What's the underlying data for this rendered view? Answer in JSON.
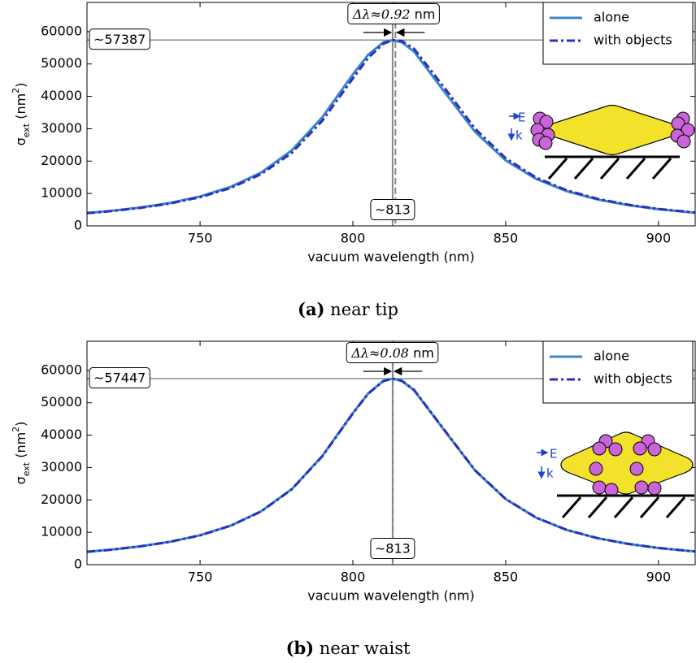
{
  "chart_data": [
    {
      "type": "line",
      "x": [
        713,
        720,
        730,
        740,
        750,
        760,
        770,
        780,
        790,
        800,
        805,
        810,
        813,
        816,
        820,
        830,
        840,
        850,
        860,
        870,
        880,
        890,
        900,
        912
      ],
      "series": [
        {
          "name": "alone",
          "color": "#3a86c8",
          "style": "solid",
          "values": [
            3980,
            4554,
            5604,
            7041,
            9073,
            12033,
            16486,
            23319,
            33560,
            46778,
            52848,
            56701,
            57387,
            56701,
            53849,
            41351,
            29011,
            20228,
            14477,
            10708,
            8171,
            6420,
            5144,
            4056
          ]
        },
        {
          "name": "with objects",
          "color": "#2a2fbe",
          "style": "dashdot",
          "values": [
            3912,
            4471,
            5492,
            6886,
            8849,
            11703,
            15984,
            22547,
            32446,
            45554,
            51887,
            56286,
            57372,
            57115,
            54722,
            42602,
            29989,
            20879,
            14901,
            10989,
            8363,
            6556,
            5243,
            4126
          ]
        }
      ],
      "xlim": [
        713,
        912
      ],
      "ylim": [
        0,
        69000
      ],
      "xticks": [
        750,
        800,
        850,
        900
      ],
      "yticks": [
        0,
        10000,
        20000,
        30000,
        40000,
        50000,
        60000
      ],
      "x_label": "vacuum wavelength (nm)",
      "y_label": [
        "σ",
        "ext",
        " (nm",
        "2",
        ")"
      ],
      "peak": {
        "value": 57387,
        "label": "~57387"
      },
      "peak_x": {
        "value": 813,
        "label": "~813"
      },
      "shifted_x": 813.92,
      "shift_label": [
        "Δλ≈0.92",
        " nm"
      ],
      "inset_labels": [
        "E",
        "k"
      ],
      "legend": "upper right",
      "caption": [
        "(a)",
        " near tip"
      ]
    },
    {
      "type": "line",
      "x": [
        713,
        720,
        730,
        740,
        750,
        760,
        770,
        780,
        790,
        800,
        805,
        810,
        813,
        816,
        820,
        830,
        840,
        850,
        860,
        870,
        880,
        890,
        900,
        912
      ],
      "series": [
        {
          "name": "alone",
          "color": "#3a86c8",
          "style": "solid",
          "values": [
            3984,
            4559,
            5610,
            7048,
            9082,
            12046,
            16503,
            23343,
            33595,
            46827,
            52903,
            56761,
            57447,
            56761,
            53905,
            41394,
            29041,
            20249,
            14492,
            10719,
            8180,
            6427,
            5149,
            4060
          ]
        },
        {
          "name": "with objects",
          "color": "#2a2fbe",
          "style": "dashdot",
          "values": [
            3978,
            4551,
            5599,
            7033,
            9061,
            12015,
            16455,
            23270,
            33490,
            46711,
            52812,
            56722,
            57447,
            56800,
            53988,
            41512,
            29133,
            20311,
            14532,
            10746,
            8198,
            6440,
            5158,
            4067
          ]
        }
      ],
      "xlim": [
        713,
        912
      ],
      "ylim": [
        0,
        69000
      ],
      "xticks": [
        750,
        800,
        850,
        900
      ],
      "yticks": [
        0,
        10000,
        20000,
        30000,
        40000,
        50000,
        60000
      ],
      "x_label": "vacuum wavelength (nm)",
      "y_label": [
        "σ",
        "ext",
        " (nm",
        "2",
        ")"
      ],
      "peak": {
        "value": 57447,
        "label": "~57447"
      },
      "peak_x": {
        "value": 813,
        "label": "~813"
      },
      "shifted_x": 813.08,
      "shift_label": [
        "Δλ≈0.08",
        " nm"
      ],
      "inset_labels": [
        "E",
        "k"
      ],
      "legend": "upper right",
      "caption": [
        "(b)",
        " near waist"
      ]
    }
  ]
}
